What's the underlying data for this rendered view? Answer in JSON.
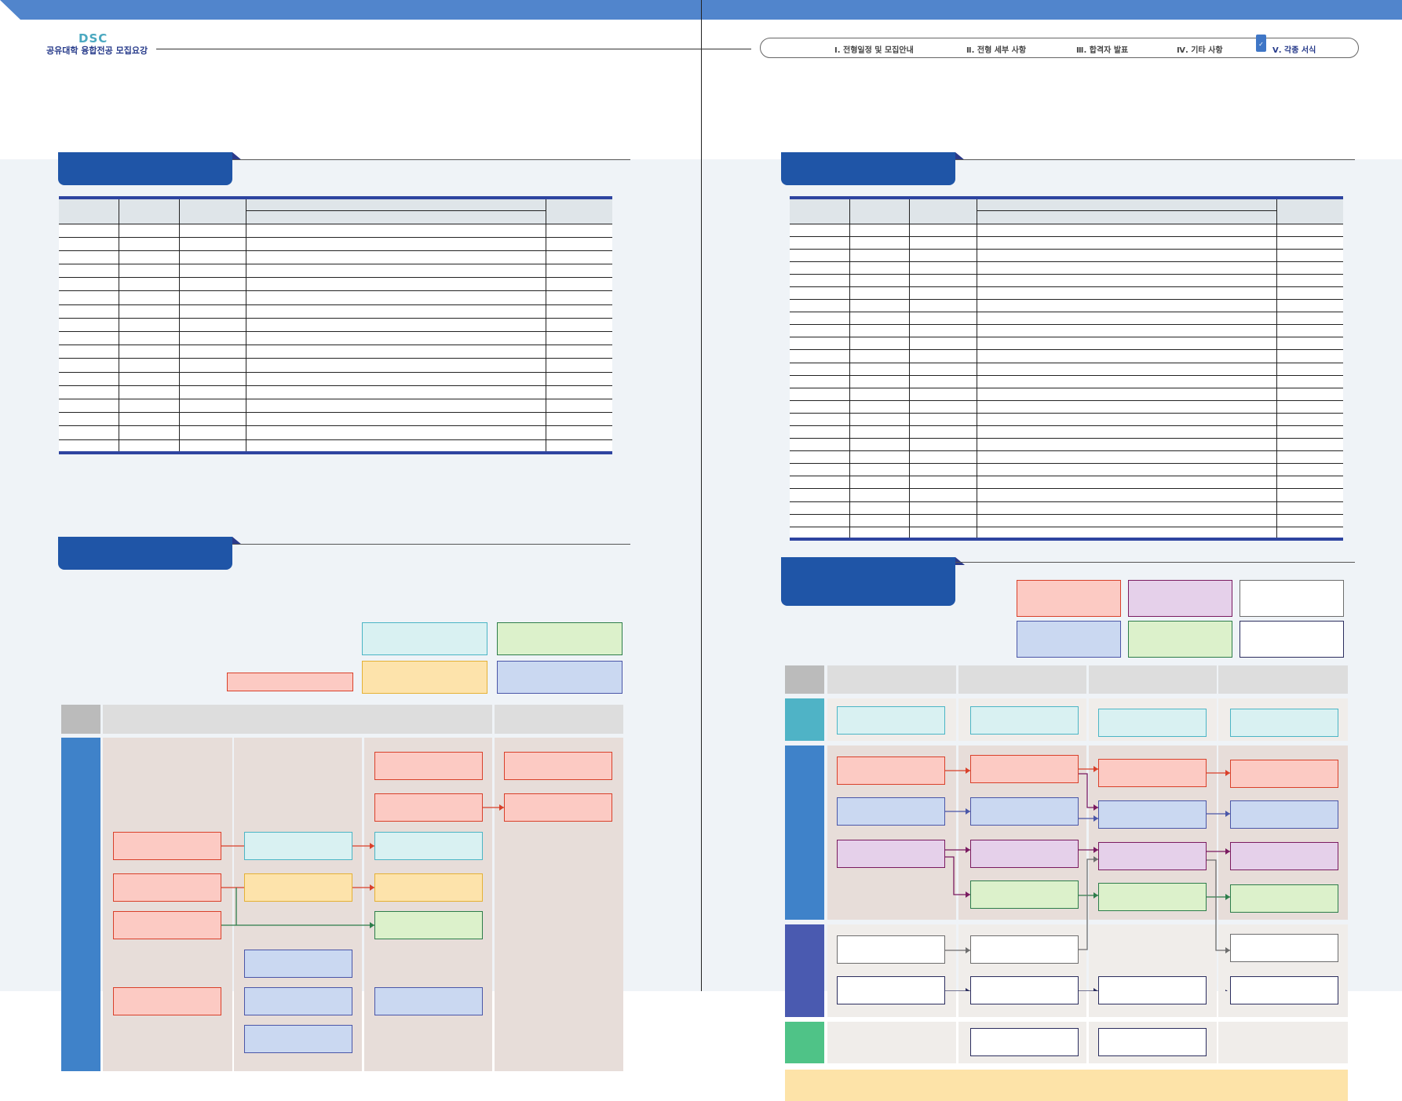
{
  "header": {
    "logo": "DSC",
    "subtitle": "공유대학 융합전공 모집요강",
    "nav": [
      {
        "label": "Ⅰ. 전형일정 및 모집안내",
        "active": false
      },
      {
        "label": "Ⅱ. 전형 세부 사항",
        "active": false
      },
      {
        "label": "Ⅲ. 합격자 발표",
        "active": false
      },
      {
        "label": "Ⅳ. 기타 사항",
        "active": false
      },
      {
        "label": "Ⅴ. 각종 서식",
        "active": true
      }
    ],
    "active_icon": "bookmark-check-icon",
    "accent": "#5185cc"
  },
  "left_page": {
    "table": {
      "columns": 5,
      "body_rows": 17
    },
    "diagram": {
      "legend": [
        "cyan",
        "green",
        "yellow",
        "blue",
        "red"
      ]
    }
  },
  "right_page": {
    "table": {
      "columns": 5,
      "body_rows": 25
    },
    "diagram": {
      "legend": [
        "red",
        "purple",
        "white",
        "blue",
        "green",
        "navy"
      ]
    }
  },
  "colors": {
    "red": [
      "#fccac3",
      "#d9402a"
    ],
    "cyan": [
      "#d9f1f2",
      "#4bb5c5"
    ],
    "yellow": [
      "#fde3ab",
      "#e5b135"
    ],
    "green": [
      "#dcf1cb",
      "#2d7d4a"
    ],
    "blue": [
      "#cad8f1",
      "#4a56a8"
    ],
    "purple": [
      "#e5d0ea",
      "#7a1a60"
    ],
    "white": [
      "#ffffff",
      "#6d6d6d"
    ],
    "navy": [
      "#ffffff",
      "#2b2d5e"
    ],
    "section_tab": "#1f55a7",
    "table_rule": "#2e44a0"
  }
}
